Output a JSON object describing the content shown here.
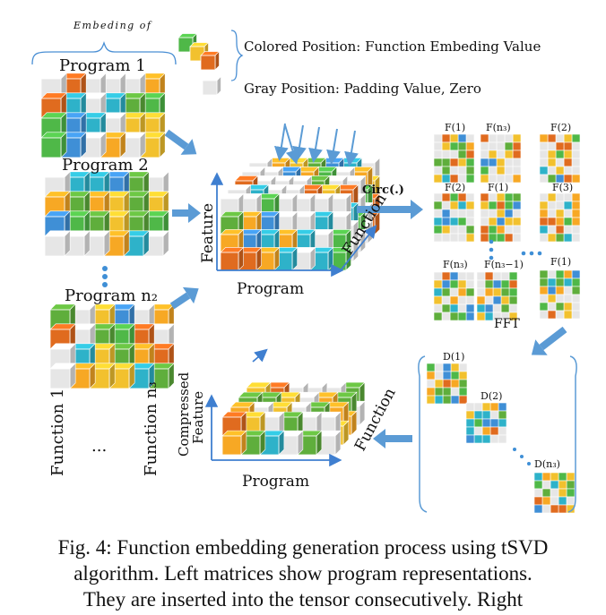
{
  "legend": {
    "embedding_of": "Embeding of",
    "colored_label": "Colored Position: Function Embeding Value",
    "gray_label": "Gray Position: Padding Value, Zero"
  },
  "programs": {
    "p1": "Program 1",
    "p2": "Program 2",
    "pn": "Program n₂",
    "function_1": "Function 1",
    "function_n": "Function n₃",
    "ellipsis": "..."
  },
  "tensor": {
    "feature": "Feature",
    "program": "Program",
    "function": "Function",
    "circ": "Circ(.)"
  },
  "fblocks": [
    "F(1)",
    "F(n₃)",
    "F(2)",
    "F(2)",
    "F(1)",
    "F(3)",
    "F(n₃)",
    "F(n₃−1)",
    "F(1)"
  ],
  "fft": "FFT",
  "dblocks": [
    "D(1)",
    "D(2)",
    "D(n₃)"
  ],
  "compressed": {
    "feature_line1": "Compressed",
    "feature_line2": "Feature",
    "program": "Program",
    "function": "Function"
  },
  "caption": {
    "line1": "Fig. 4: Function embedding generation process using tSVD",
    "line2": "algorithm. Left matrices show program representations.",
    "line3": "They are inserted into the tensor consecutively. Right"
  },
  "colors": {
    "arrow": "#5b9bd5",
    "gray": "#e6e6e6",
    "palette": [
      "#f2c12e",
      "#e06b1f",
      "#4fb848",
      "#2eb2c9",
      "#3f8fd6",
      "#5fae3c",
      "#f7a824",
      "#cfd9e0",
      "#8bc34a",
      "#1e88e5",
      "#e53935"
    ]
  }
}
